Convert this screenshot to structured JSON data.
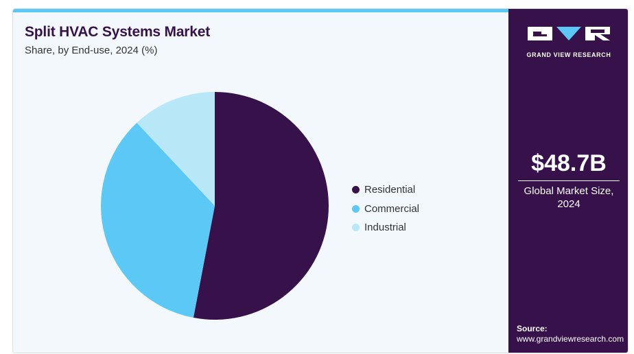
{
  "header": {
    "title": "Split HVAC Systems Market",
    "subtitle": "Share, by End-use, 2024 (%)"
  },
  "chart_data": {
    "type": "pie",
    "title": "Split HVAC Systems Market",
    "subtitle": "Share, by End-use, 2024 (%)",
    "categories": [
      "Residential",
      "Commercial",
      "Industrial"
    ],
    "values": [
      53,
      35,
      12
    ],
    "colors": [
      "#37124a",
      "#5bc8f5",
      "#b8e8f8"
    ],
    "legend": "right",
    "start_angle": "12 o'clock",
    "direction": "clockwise"
  },
  "sidebar": {
    "logo_text": "GRAND VIEW RESEARCH",
    "logo_icon": "gvr-logo",
    "market_value": "$48.7B",
    "market_label": "Global Market Size, 2024",
    "source_label": "Source:",
    "source_url": "www.grandviewresearch.com",
    "background": "#37124a"
  }
}
